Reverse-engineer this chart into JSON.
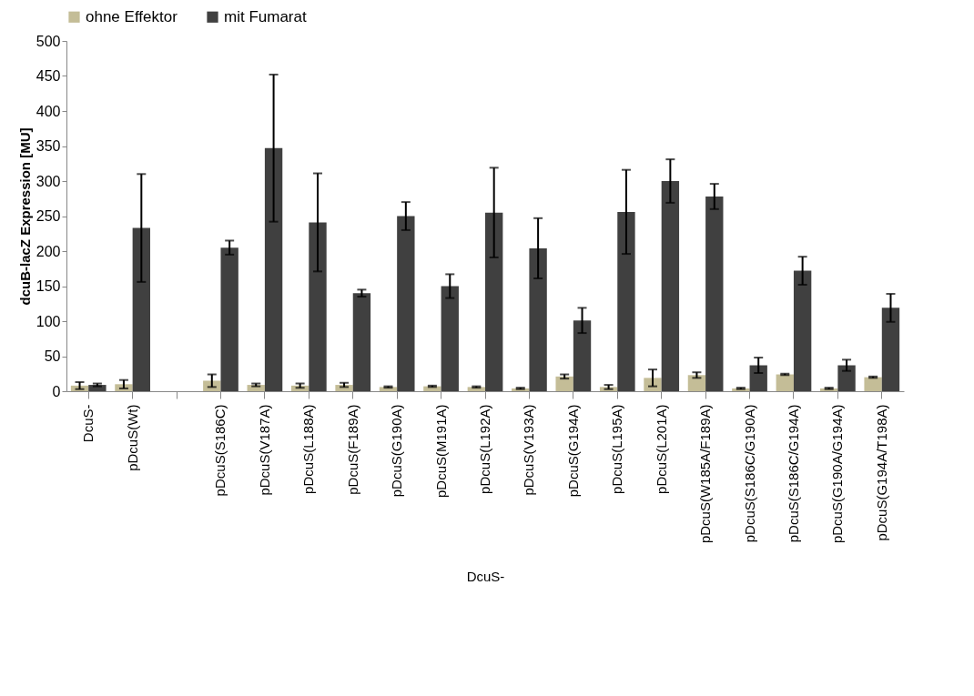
{
  "chart_data": {
    "type": "bar",
    "ylabel": "dcuB-lacZ Expression [MU]",
    "xlabel": "DcuS-",
    "categories": [
      "DcuS-",
      "pDcuS(Wt)",
      null,
      "pDcuS(S186C)",
      "pDcuS(V187A)",
      "pDcuS(L188A)",
      "pDcuS(F189A)",
      "pDcuS(G190A)",
      "pDcuS(M191A)",
      "pDcuS(L192A)",
      "pDcuS(V193A)",
      "pDcuS(G194A)",
      "pDcuS(L195A)",
      "pDcuS(L201A)",
      "pDcuS(W185A/F189A)",
      "pDcuS(S186C/G190A)",
      "pDcuS(S186C/G194A)",
      "pDcuS(G190A/G194A)",
      "pDcuS(G194A/T198A)"
    ],
    "series": [
      {
        "name": "ohne Effektor",
        "color": "#c4bd97",
        "values": [
          8,
          10,
          null,
          15,
          9,
          8,
          9,
          6,
          7,
          6,
          4,
          21,
          6,
          19,
          23,
          4,
          24,
          4,
          20
        ],
        "errors": [
          5,
          6,
          null,
          9,
          2,
          3,
          3,
          1,
          1,
          1,
          1,
          3,
          3,
          12,
          4,
          1,
          1,
          1,
          1
        ]
      },
      {
        "name": "mit Fumarat",
        "color": "#404040",
        "values": [
          9,
          233,
          null,
          205,
          347,
          241,
          140,
          250,
          150,
          255,
          204,
          101,
          256,
          300,
          278,
          37,
          172,
          37,
          119
        ],
        "errors": [
          2,
          77,
          null,
          10,
          105,
          70,
          5,
          20,
          17,
          64,
          43,
          18,
          60,
          31,
          18,
          11,
          20,
          8,
          20
        ]
      }
    ],
    "ylim": [
      0,
      500
    ],
    "yticks": [
      0,
      50,
      100,
      150,
      200,
      250,
      300,
      350,
      400,
      450,
      500
    ],
    "grid": false,
    "legend": "top"
  }
}
